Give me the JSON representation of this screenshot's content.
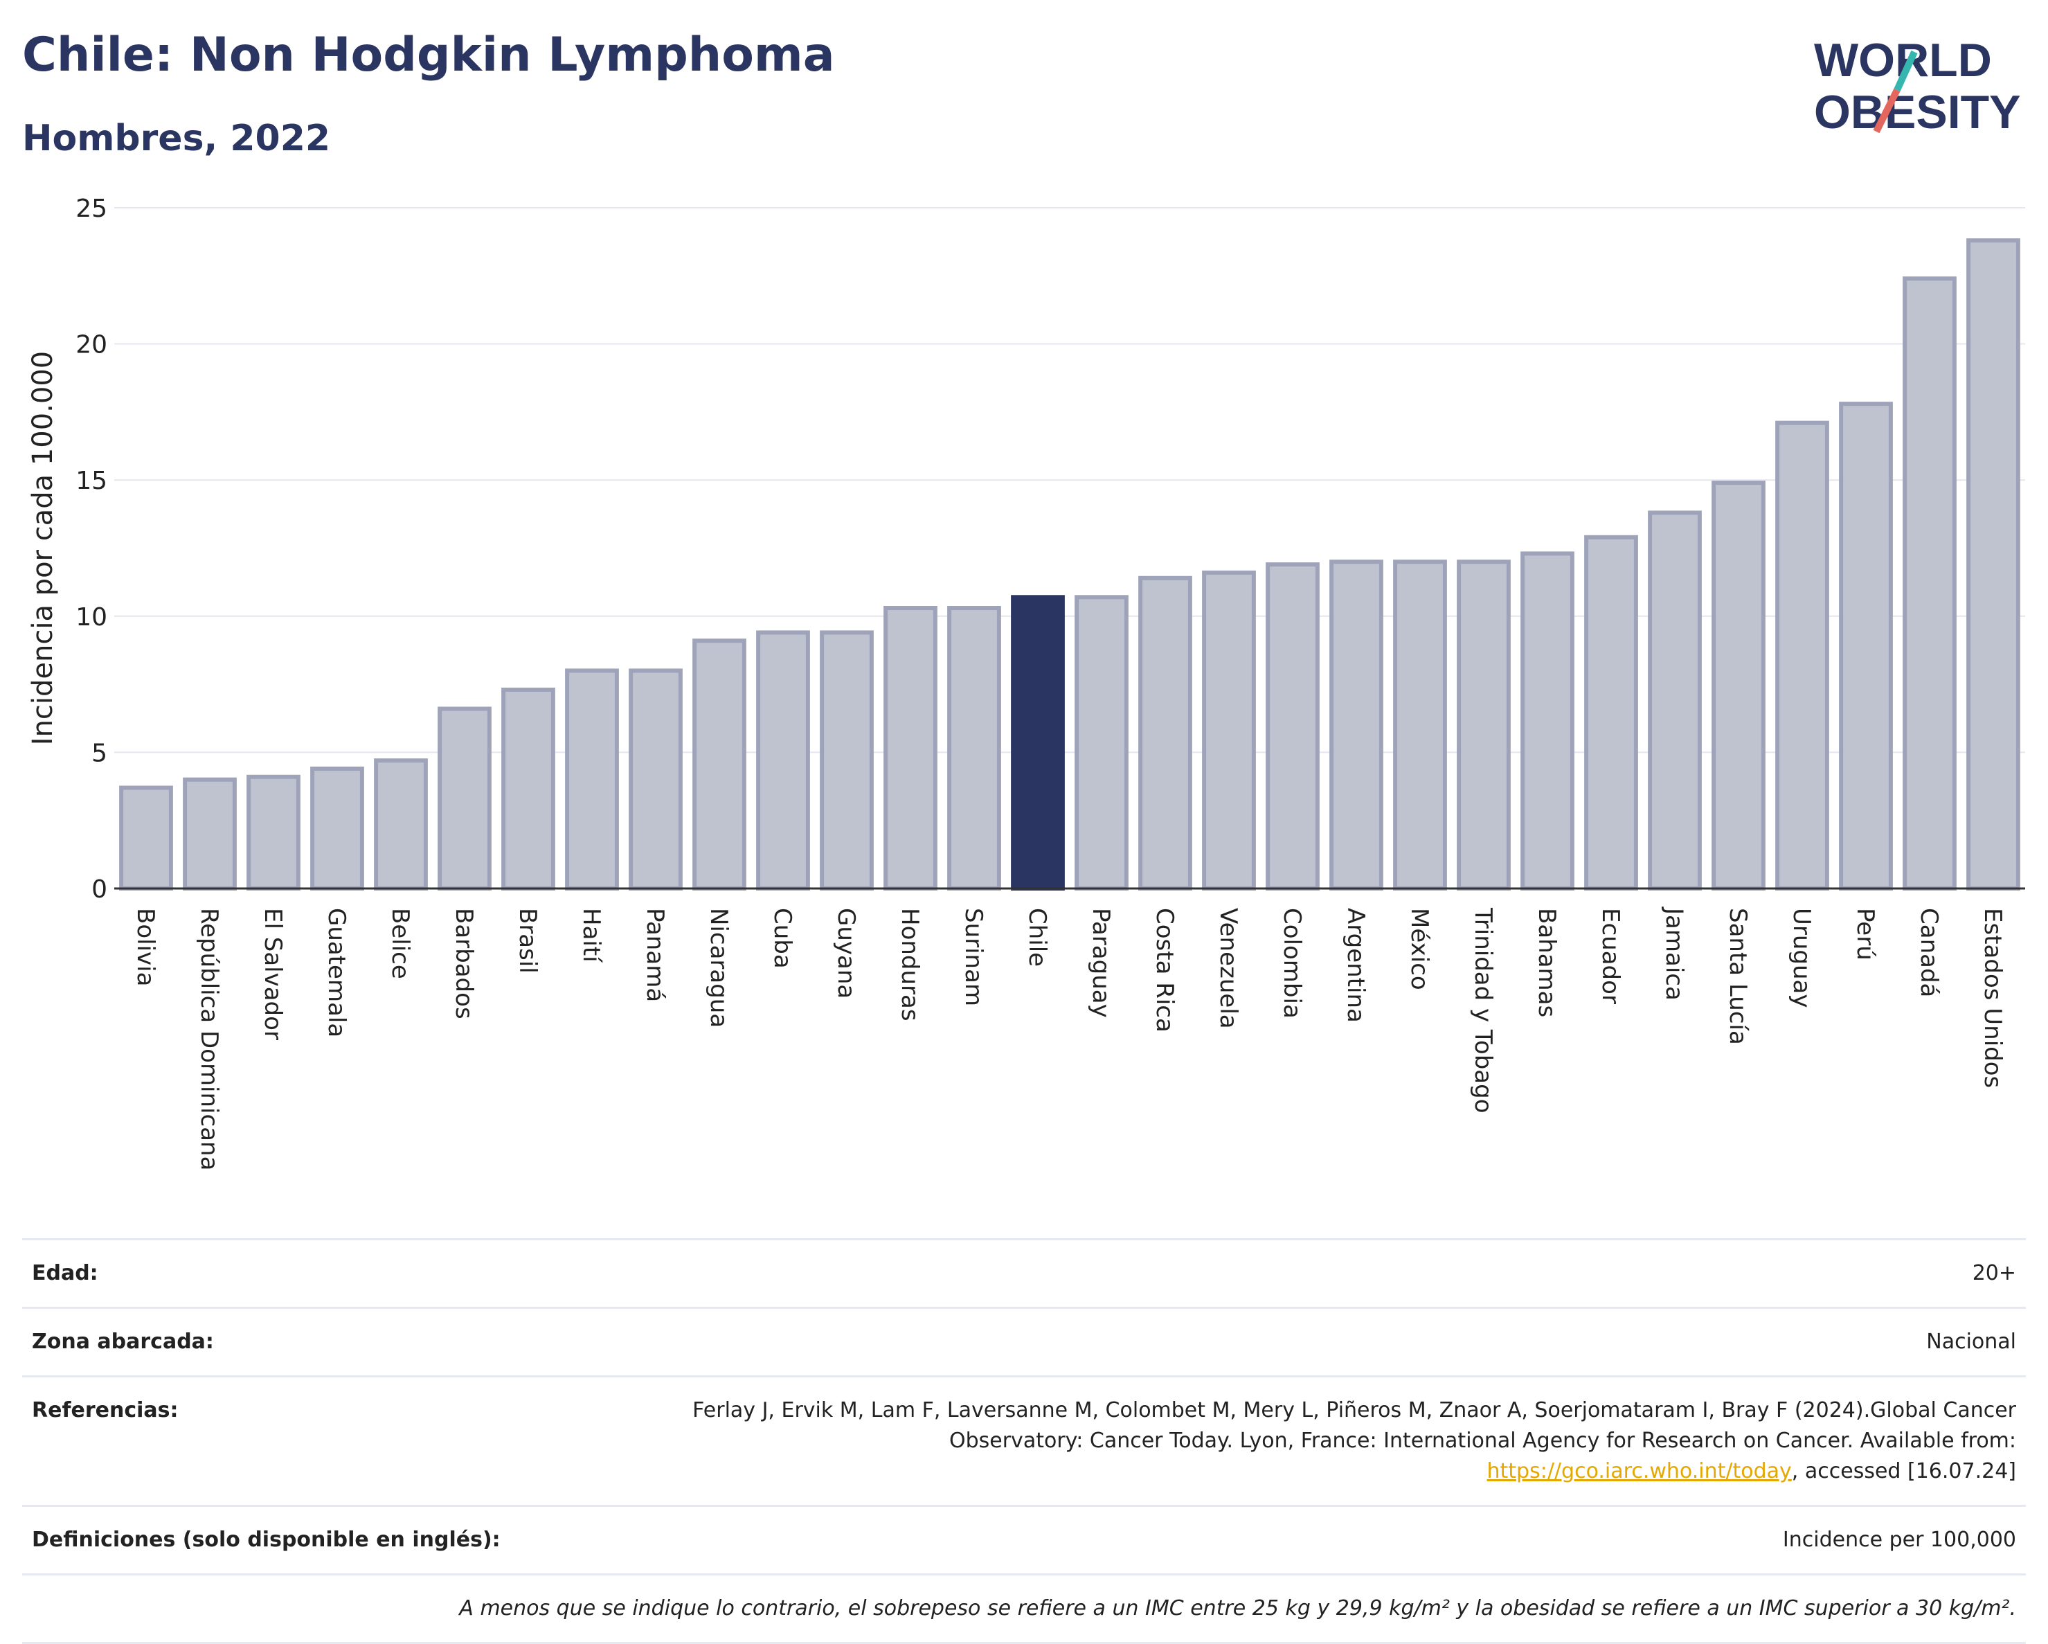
{
  "header": {
    "title": "Chile: Non Hodgkin Lymphoma",
    "subtitle": "Hombres, 2022"
  },
  "logo": {
    "line1": "WORLD",
    "line2": "OBESITY",
    "accent_colors": [
      "#35b7b0",
      "#e3675d"
    ]
  },
  "colors": {
    "bar": "#bfc2cf",
    "bar_border": "#9ea3ba",
    "highlight": "#2b3561",
    "grid": "#e4e6ee",
    "axis": "#333333"
  },
  "chart_data": {
    "type": "bar",
    "xlabel": "",
    "ylabel": "Incidencia por cada 100.000",
    "ylim": [
      0,
      25
    ],
    "yticks": [
      0,
      5,
      10,
      15,
      20,
      25
    ],
    "grid": true,
    "highlight": "Chile",
    "categories": [
      "Bolivia",
      "República Dominicana",
      "El Salvador",
      "Guatemala",
      "Belice",
      "Barbados",
      "Brasil",
      "Haití",
      "Panamá",
      "Nicaragua",
      "Cuba",
      "Guyana",
      "Honduras",
      "Surinam",
      "Chile",
      "Paraguay",
      "Costa Rica",
      "Venezuela",
      "Colombia",
      "Argentina",
      "México",
      "Trinidad y Tobago",
      "Bahamas",
      "Ecuador",
      "Jamaica",
      "Santa Lucía",
      "Uruguay",
      "Perú",
      "Canadá",
      "Estados Unidos"
    ],
    "values": [
      3.7,
      4.0,
      4.1,
      4.4,
      4.7,
      6.6,
      7.3,
      8.0,
      8.0,
      9.1,
      9.4,
      9.4,
      10.3,
      10.3,
      10.7,
      10.7,
      11.4,
      11.6,
      11.9,
      12.0,
      12.0,
      12.0,
      12.3,
      12.9,
      13.8,
      14.9,
      17.1,
      17.8,
      22.4,
      23.8
    ]
  },
  "info": {
    "edad_label": "Edad:",
    "edad_value": "20+",
    "zona_label": "Zona abarcada:",
    "zona_value": "Nacional",
    "ref_label": "Referencias:",
    "ref_text": "Ferlay J, Ervik M, Lam F, Laversanne M, Colombet M, Mery L, Piñeros M, Znaor A, Soerjomataram I, Bray F (2024).Global Cancer Observatory: Cancer Today. Lyon, France: International Agency for Research on Cancer. Available from:",
    "ref_link": "https://gco.iarc.who.int/today",
    "ref_tail": ", accessed [16.07.24]",
    "def_label": "Definiciones (solo disponible en inglés):",
    "def_value": "Incidence per 100,000",
    "note": "A menos que se indique lo contrario, el sobrepeso se refiere a un IMC entre 25 kg y 29,9 kg/m² y la obesidad se refiere a un IMC superior a 30 kg/m²."
  }
}
